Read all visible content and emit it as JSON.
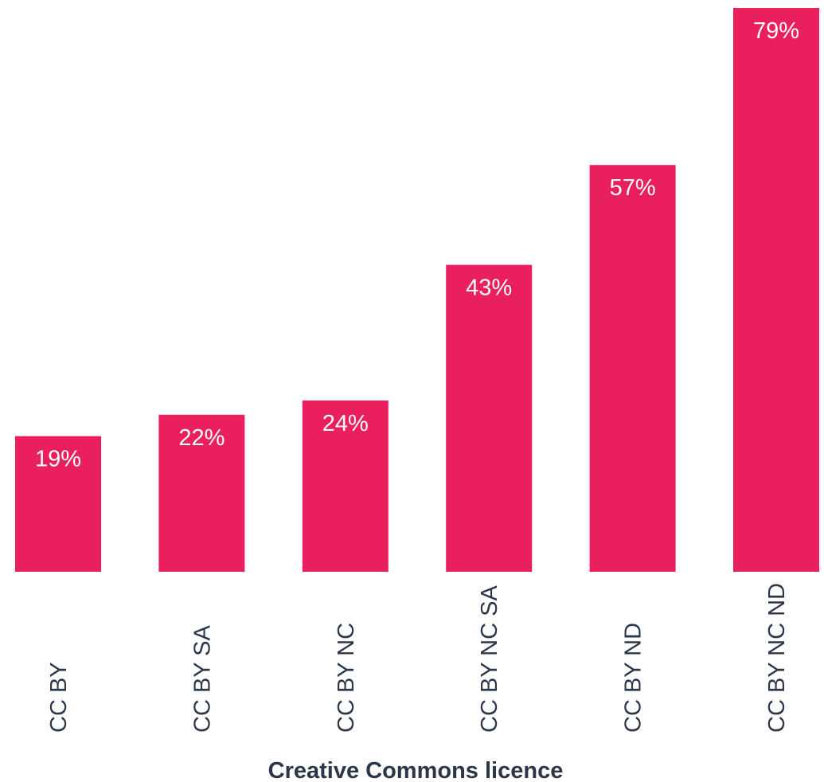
{
  "chart_data": {
    "type": "bar",
    "categories": [
      "CC BY",
      "CC BY SA",
      "CC BY NC",
      "CC BY NC SA",
      "CC BY ND",
      "CC BY NC ND"
    ],
    "values": [
      19,
      22,
      24,
      43,
      57,
      79
    ],
    "value_labels": [
      "19%",
      "22%",
      "24%",
      "43%",
      "57%",
      "79%"
    ],
    "title": "",
    "xlabel": "Creative Commons licence",
    "ylabel": "",
    "ylim": [
      0,
      79
    ],
    "grid": false,
    "legend": "none",
    "bar_color": "#ea1f5d",
    "label_color": "#ffffff",
    "text_color": "#2b3748",
    "category_label_orientation": "vertical"
  }
}
